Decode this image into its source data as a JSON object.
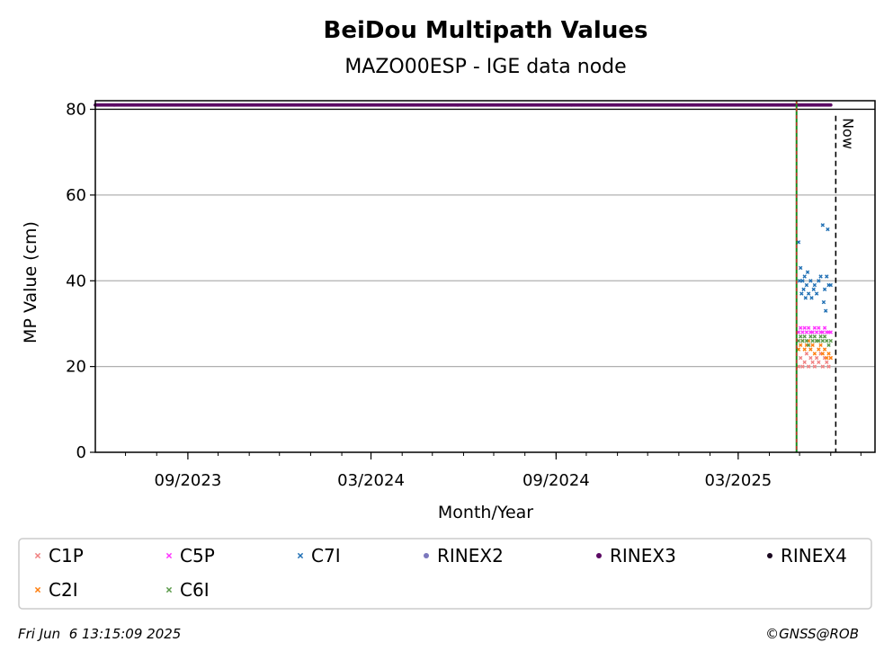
{
  "chart_data": {
    "type": "scatter",
    "title": "BeiDou Multipath Values",
    "subtitle": "MAZO00ESP - IGE data node",
    "xlabel": "Month/Year",
    "ylabel": "MP Value (cm)",
    "x_range": [
      "2023-06-01",
      "2025-07-15"
    ],
    "ylim": [
      0,
      82
    ],
    "y_ticks": [
      0,
      20,
      40,
      60,
      80
    ],
    "x_ticks": [
      {
        "date": "2023-09-01",
        "label": "09/2023"
      },
      {
        "date": "2024-03-01",
        "label": "03/2024"
      },
      {
        "date": "2024-09-01",
        "label": "09/2024"
      },
      {
        "date": "2025-03-01",
        "label": "03/2025"
      }
    ],
    "grid": "horizontal",
    "rinex_band": {
      "series": "RINEX3",
      "value": 81,
      "start": "2023-06-01",
      "end": "2025-06-01",
      "color": "#5c0a64"
    },
    "green_line": {
      "date": "2025-04-28",
      "color": "#1a8a1a"
    },
    "red_line": {
      "date": "2025-04-28",
      "color": "#d62728"
    },
    "now_line": {
      "date": "2025-06-06",
      "label": "Now"
    },
    "series": [
      {
        "name": "C1P",
        "color": "#f08080",
        "points": [
          [
            "2025-04-30",
            20
          ],
          [
            "2025-05-02",
            22
          ],
          [
            "2025-05-04",
            20
          ],
          [
            "2025-05-06",
            21
          ],
          [
            "2025-05-08",
            23
          ],
          [
            "2025-05-10",
            20
          ],
          [
            "2025-05-12",
            22
          ],
          [
            "2025-05-14",
            21
          ],
          [
            "2025-05-16",
            20
          ],
          [
            "2025-05-18",
            22
          ],
          [
            "2025-05-20",
            21
          ],
          [
            "2025-05-22",
            23
          ],
          [
            "2025-05-24",
            20
          ],
          [
            "2025-05-26",
            22
          ],
          [
            "2025-05-28",
            21
          ],
          [
            "2025-05-30",
            20
          ],
          [
            "2025-06-01",
            22
          ]
        ]
      },
      {
        "name": "C2I",
        "color": "#ff7f0e",
        "points": [
          [
            "2025-04-30",
            24
          ],
          [
            "2025-05-02",
            25
          ],
          [
            "2025-05-04",
            26
          ],
          [
            "2025-05-06",
            24
          ],
          [
            "2025-05-08",
            25
          ],
          [
            "2025-05-10",
            26
          ],
          [
            "2025-05-12",
            24
          ],
          [
            "2025-05-14",
            25
          ],
          [
            "2025-05-16",
            23
          ],
          [
            "2025-05-18",
            26
          ],
          [
            "2025-05-20",
            24
          ],
          [
            "2025-05-22",
            25
          ],
          [
            "2025-05-24",
            23
          ],
          [
            "2025-05-26",
            24
          ],
          [
            "2025-05-28",
            22
          ],
          [
            "2025-05-30",
            23
          ],
          [
            "2025-06-01",
            22
          ]
        ]
      },
      {
        "name": "C5P",
        "color": "#ff33ff",
        "points": [
          [
            "2025-04-30",
            28
          ],
          [
            "2025-05-02",
            29
          ],
          [
            "2025-05-04",
            28
          ],
          [
            "2025-05-06",
            29
          ],
          [
            "2025-05-08",
            28
          ],
          [
            "2025-05-10",
            29
          ],
          [
            "2025-05-12",
            28
          ],
          [
            "2025-05-14",
            28
          ],
          [
            "2025-05-16",
            29
          ],
          [
            "2025-05-18",
            28
          ],
          [
            "2025-05-20",
            29
          ],
          [
            "2025-05-22",
            28
          ],
          [
            "2025-05-24",
            28
          ],
          [
            "2025-05-26",
            29
          ],
          [
            "2025-05-28",
            28
          ],
          [
            "2025-05-30",
            28
          ],
          [
            "2025-06-01",
            28
          ]
        ]
      },
      {
        "name": "C6I",
        "color": "#5a9a4a",
        "points": [
          [
            "2025-04-30",
            26
          ],
          [
            "2025-05-02",
            27
          ],
          [
            "2025-05-04",
            26
          ],
          [
            "2025-05-06",
            27
          ],
          [
            "2025-05-08",
            26
          ],
          [
            "2025-05-10",
            25
          ],
          [
            "2025-05-12",
            27
          ],
          [
            "2025-05-14",
            26
          ],
          [
            "2025-05-16",
            27
          ],
          [
            "2025-05-18",
            26
          ],
          [
            "2025-05-20",
            26
          ],
          [
            "2025-05-22",
            27
          ],
          [
            "2025-05-24",
            26
          ],
          [
            "2025-05-26",
            27
          ],
          [
            "2025-05-28",
            26
          ],
          [
            "2025-05-30",
            25
          ],
          [
            "2025-06-01",
            26
          ]
        ]
      },
      {
        "name": "C7I",
        "color": "#1f6fb4",
        "points": [
          [
            "2025-04-30",
            49
          ],
          [
            "2025-05-01",
            40
          ],
          [
            "2025-05-02",
            43
          ],
          [
            "2025-05-03",
            37
          ],
          [
            "2025-05-04",
            40
          ],
          [
            "2025-05-05",
            38
          ],
          [
            "2025-05-06",
            41
          ],
          [
            "2025-05-07",
            36
          ],
          [
            "2025-05-08",
            39
          ],
          [
            "2025-05-09",
            42
          ],
          [
            "2025-05-10",
            37
          ],
          [
            "2025-05-12",
            40
          ],
          [
            "2025-05-13",
            36
          ],
          [
            "2025-05-15",
            38
          ],
          [
            "2025-05-16",
            39
          ],
          [
            "2025-05-18",
            37
          ],
          [
            "2025-05-20",
            40
          ],
          [
            "2025-05-22",
            41
          ],
          [
            "2025-05-24",
            53
          ],
          [
            "2025-05-25",
            35
          ],
          [
            "2025-05-26",
            38
          ],
          [
            "2025-05-27",
            33
          ],
          [
            "2025-05-28",
            41
          ],
          [
            "2025-05-29",
            52
          ],
          [
            "2025-05-30",
            39
          ],
          [
            "2025-06-01",
            39
          ]
        ]
      }
    ],
    "legend": {
      "placement": "bottom",
      "entries": [
        {
          "label": "C1P",
          "color": "#f08080",
          "marker": "x"
        },
        {
          "label": "C5P",
          "color": "#ff33ff",
          "marker": "x"
        },
        {
          "label": "C7I",
          "color": "#1f6fb4",
          "marker": "x"
        },
        {
          "label": "RINEX2",
          "color": "#7b77bd",
          "marker": "dot"
        },
        {
          "label": "RINEX3",
          "color": "#5c0a64",
          "marker": "dot"
        },
        {
          "label": "RINEX4",
          "color": "#1a0820",
          "marker": "dot"
        },
        {
          "label": "C2I",
          "color": "#ff7f0e",
          "marker": "x"
        },
        {
          "label": "C6I",
          "color": "#5a9a4a",
          "marker": "x"
        }
      ]
    }
  },
  "footer": {
    "timestamp": "Fri Jun  6 13:15:09 2025",
    "credit": "©GNSS@ROB"
  }
}
